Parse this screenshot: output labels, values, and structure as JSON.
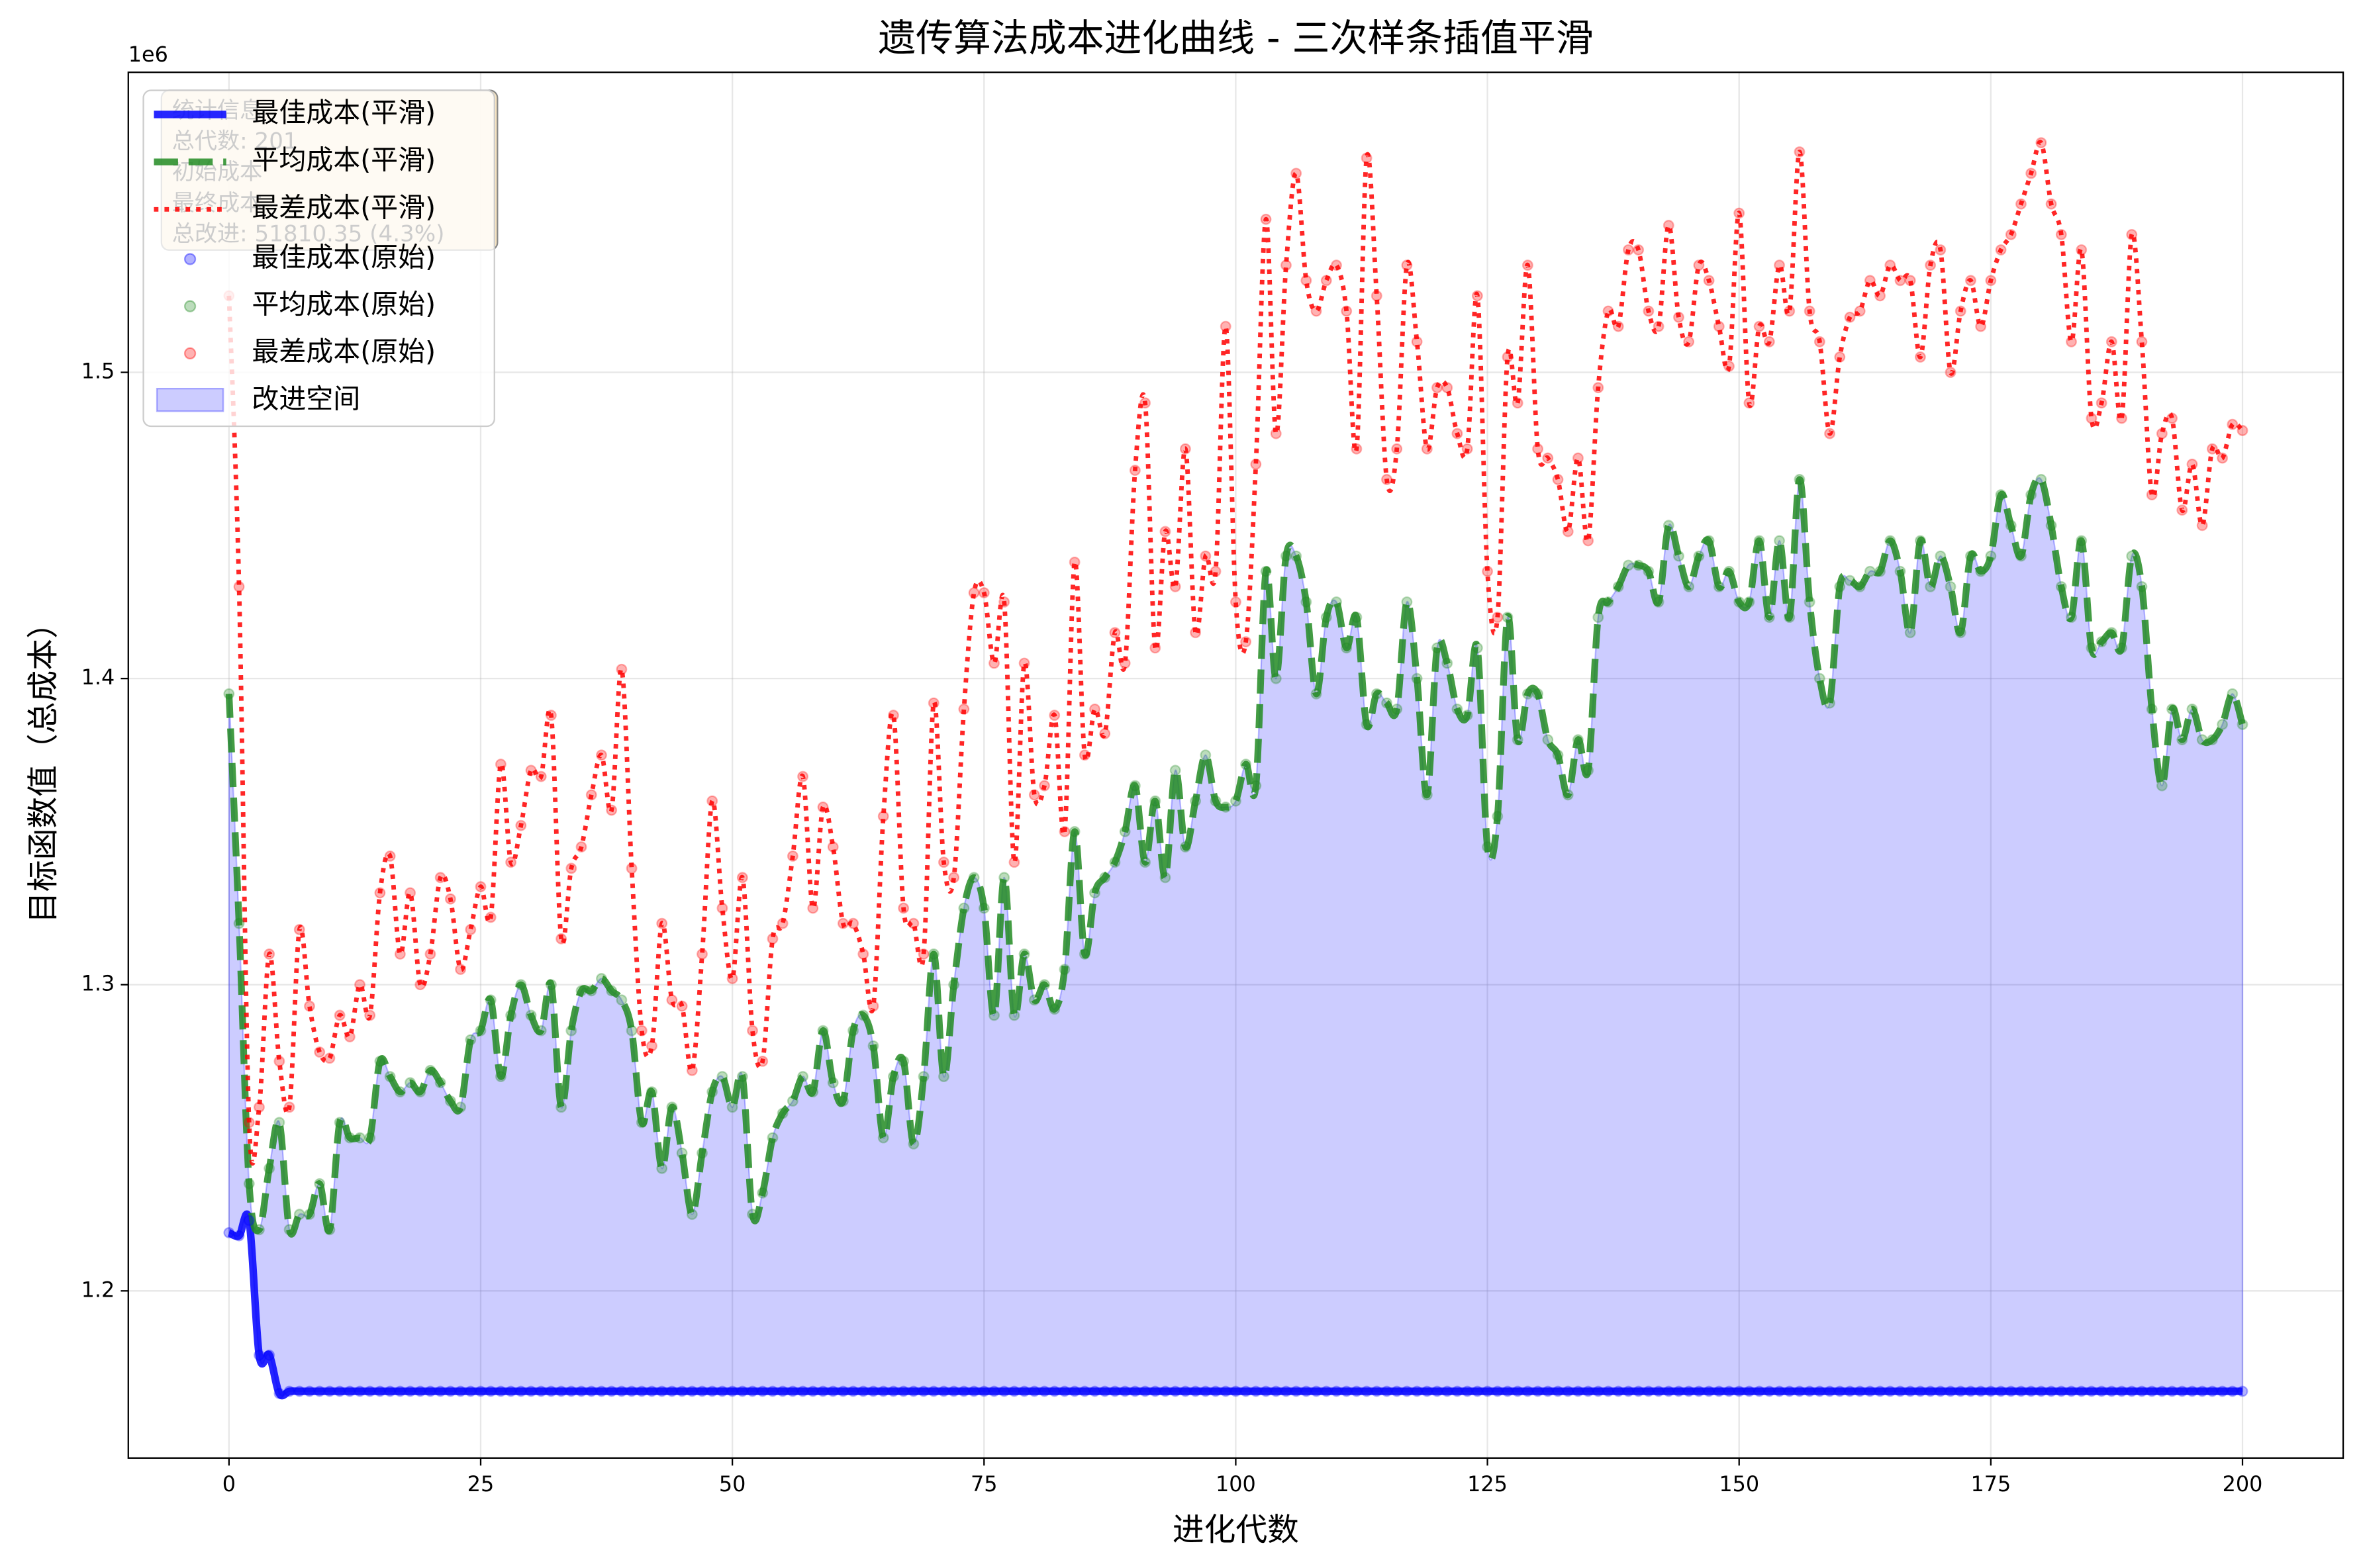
{
  "chart_data": {
    "type": "line",
    "title": "遗传算法成本进化曲线 - 三次样条插值平滑",
    "xlabel": "进化代数",
    "ylabel": "目标函数值（总成本）",
    "y_offset_label": "1e6",
    "xlim": [
      -10,
      210
    ],
    "ylim": [
      1145400,
      1598000
    ],
    "xticks": [
      0,
      25,
      50,
      75,
      100,
      125,
      150,
      175,
      200
    ],
    "yticks": [
      {
        "value": 1200000,
        "label": "1.2"
      },
      {
        "value": 1300000,
        "label": "1.3"
      },
      {
        "value": 1400000,
        "label": "1.4"
      },
      {
        "value": 1500000,
        "label": "1.5"
      }
    ],
    "grid": true,
    "legend": "upper left",
    "fill_label": "改进空间",
    "fill_color": "#0000ff",
    "stats": [
      "统计信息",
      "总代数: 201",
      "初始成本",
      "最终成本",
      "总改进: 51810.35 (4.3%)"
    ],
    "x": [
      0,
      1,
      2,
      3,
      4,
      5,
      6,
      7,
      8,
      9,
      10,
      11,
      12,
      13,
      14,
      15,
      16,
      17,
      18,
      19,
      20,
      21,
      22,
      23,
      24,
      25,
      26,
      27,
      28,
      29,
      30,
      31,
      32,
      33,
      34,
      35,
      36,
      37,
      38,
      39,
      40,
      41,
      42,
      43,
      44,
      45,
      46,
      47,
      48,
      49,
      50,
      51,
      52,
      53,
      54,
      55,
      56,
      57,
      58,
      59,
      60,
      61,
      62,
      63,
      64,
      65,
      66,
      67,
      68,
      69,
      70,
      71,
      72,
      73,
      74,
      75,
      76,
      77,
      78,
      79,
      80,
      81,
      82,
      83,
      84,
      85,
      86,
      87,
      88,
      89,
      90,
      91,
      92,
      93,
      94,
      95,
      96,
      97,
      98,
      99,
      100,
      101,
      102,
      103,
      104,
      105,
      106,
      107,
      108,
      109,
      110,
      111,
      112,
      113,
      114,
      115,
      116,
      117,
      118,
      119,
      120,
      121,
      122,
      123,
      124,
      125,
      126,
      127,
      128,
      129,
      130,
      131,
      132,
      133,
      134,
      135,
      136,
      137,
      138,
      139,
      140,
      141,
      142,
      143,
      144,
      145,
      146,
      147,
      148,
      149,
      150,
      151,
      152,
      153,
      154,
      155,
      156,
      157,
      158,
      159,
      160,
      161,
      162,
      163,
      164,
      165,
      166,
      167,
      168,
      169,
      170,
      171,
      172,
      173,
      174,
      175,
      176,
      177,
      178,
      179,
      180,
      181,
      182,
      183,
      184,
      185,
      186,
      187,
      188,
      189,
      190,
      191,
      192,
      193,
      194,
      195,
      196,
      197,
      198,
      199,
      200
    ],
    "series": [
      {
        "name": "最佳成本(平滑)",
        "raw_name": "最佳成本(原始)",
        "color": "#0000ff",
        "style": "solid",
        "values": [
          1219000,
          1218000,
          1223000,
          1179000,
          1179000,
          1166500,
          1167200,
          1167200,
          1167200,
          1167200,
          1167200,
          1167200,
          1167200,
          1167200,
          1167200,
          1167200,
          1167200,
          1167200,
          1167200,
          1167200,
          1167200,
          1167200,
          1167200,
          1167200,
          1167200,
          1167200,
          1167200,
          1167200,
          1167200,
          1167200,
          1167200,
          1167200,
          1167200,
          1167200,
          1167200,
          1167200,
          1167200,
          1167200,
          1167200,
          1167200,
          1167200,
          1167200,
          1167200,
          1167200,
          1167200,
          1167200,
          1167200,
          1167200,
          1167200,
          1167200,
          1167200,
          1167200,
          1167200,
          1167200,
          1167200,
          1167200,
          1167200,
          1167200,
          1167200,
          1167200,
          1167200,
          1167200,
          1167200,
          1167200,
          1167200,
          1167200,
          1167200,
          1167200,
          1167200,
          1167200,
          1167200,
          1167200,
          1167200,
          1167200,
          1167200,
          1167200,
          1167200,
          1167200,
          1167200,
          1167200,
          1167200,
          1167200,
          1167200,
          1167200,
          1167200,
          1167200,
          1167200,
          1167200,
          1167200,
          1167200,
          1167200,
          1167200,
          1167200,
          1167200,
          1167200,
          1167200,
          1167200,
          1167200,
          1167200,
          1167200,
          1167200,
          1167200,
          1167200,
          1167200,
          1167200,
          1167200,
          1167200,
          1167200,
          1167200,
          1167200,
          1167200,
          1167200,
          1167200,
          1167200,
          1167200,
          1167200,
          1167200,
          1167200,
          1167200,
          1167200,
          1167200,
          1167200,
          1167200,
          1167200,
          1167200,
          1167200,
          1167200,
          1167200,
          1167200,
          1167200,
          1167200,
          1167200,
          1167200,
          1167200,
          1167200,
          1167200,
          1167200,
          1167200,
          1167200,
          1167200,
          1167200,
          1167200,
          1167200,
          1167200,
          1167200,
          1167200,
          1167200,
          1167200,
          1167200,
          1167200,
          1167200,
          1167200,
          1167200,
          1167200,
          1167200,
          1167200,
          1167200,
          1167200,
          1167200,
          1167200,
          1167200,
          1167200,
          1167200,
          1167200,
          1167200,
          1167200,
          1167200,
          1167200,
          1167200,
          1167200,
          1167200,
          1167200,
          1167200,
          1167200,
          1167200,
          1167200,
          1167200,
          1167200,
          1167200,
          1167200,
          1167200,
          1167200,
          1167200,
          1167200,
          1167200,
          1167200,
          1167200,
          1167200,
          1167200,
          1167200,
          1167200,
          1167200,
          1167200,
          1167200,
          1167200,
          1167200,
          1167200,
          1167200,
          1167200,
          1167200,
          1167200
        ]
      },
      {
        "name": "平均成本(平滑)",
        "raw_name": "平均成本(原始)",
        "color": "#228b22",
        "style": "dashed",
        "values": [
          1395000,
          1320000,
          1235000,
          1220000,
          1240000,
          1255000,
          1220000,
          1225000,
          1225000,
          1235000,
          1220000,
          1255000,
          1250000,
          1250000,
          1250000,
          1275000,
          1270000,
          1265000,
          1268000,
          1265000,
          1272000,
          1268000,
          1262000,
          1260000,
          1282000,
          1285000,
          1295000,
          1270000,
          1290000,
          1300000,
          1290000,
          1285000,
          1300000,
          1260000,
          1285000,
          1298000,
          1298000,
          1302000,
          1298000,
          1295000,
          1285000,
          1255000,
          1265000,
          1240000,
          1260000,
          1245000,
          1225000,
          1245000,
          1265000,
          1270000,
          1260000,
          1270000,
          1225000,
          1232000,
          1250000,
          1258000,
          1262000,
          1270000,
          1265000,
          1285000,
          1268000,
          1262000,
          1285000,
          1290000,
          1280000,
          1250000,
          1270000,
          1275000,
          1248000,
          1270000,
          1310000,
          1270000,
          1300000,
          1325000,
          1335000,
          1325000,
          1290000,
          1335000,
          1290000,
          1310000,
          1295000,
          1300000,
          1292000,
          1305000,
          1350000,
          1310000,
          1330000,
          1335000,
          1340000,
          1350000,
          1365000,
          1340000,
          1360000,
          1335000,
          1370000,
          1345000,
          1360000,
          1375000,
          1360000,
          1358000,
          1360000,
          1372000,
          1365000,
          1435000,
          1400000,
          1440000,
          1440000,
          1425000,
          1395000,
          1420000,
          1425000,
          1410000,
          1420000,
          1385000,
          1395000,
          1392000,
          1390000,
          1425000,
          1400000,
          1362000,
          1410000,
          1405000,
          1390000,
          1388000,
          1410000,
          1345000,
          1355000,
          1420000,
          1380000,
          1395000,
          1395000,
          1380000,
          1375000,
          1362000,
          1380000,
          1370000,
          1420000,
          1425000,
          1430000,
          1437000,
          1437000,
          1435000,
          1425000,
          1450000,
          1440000,
          1430000,
          1440000,
          1445000,
          1430000,
          1435000,
          1425000,
          1425000,
          1445000,
          1420000,
          1445000,
          1420000,
          1465000,
          1425000,
          1400000,
          1392000,
          1430000,
          1432000,
          1430000,
          1435000,
          1435000,
          1445000,
          1435000,
          1415000,
          1445000,
          1430000,
          1440000,
          1430000,
          1415000,
          1440000,
          1435000,
          1440000,
          1460000,
          1450000,
          1440000,
          1460000,
          1465000,
          1450000,
          1430000,
          1420000,
          1445000,
          1410000,
          1412000,
          1415000,
          1410000,
          1440000,
          1430000,
          1390000,
          1365000,
          1390000,
          1380000,
          1390000,
          1380000,
          1380000,
          1385000,
          1395000,
          1385000
        ]
      },
      {
        "name": "最差成本(平滑)",
        "raw_name": "最差成本(原始)",
        "color": "#ff0000",
        "style": "dotted",
        "values": [
          1525000,
          1430000,
          1255000,
          1260000,
          1310000,
          1275000,
          1260000,
          1318000,
          1293000,
          1278000,
          1276000,
          1290000,
          1283000,
          1300000,
          1290000,
          1330000,
          1342000,
          1310000,
          1330000,
          1300000,
          1310000,
          1335000,
          1328000,
          1305000,
          1318000,
          1332000,
          1322000,
          1372000,
          1340000,
          1352000,
          1370000,
          1368000,
          1388000,
          1315000,
          1338000,
          1345000,
          1362000,
          1375000,
          1357000,
          1403000,
          1338000,
          1285000,
          1280000,
          1320000,
          1295000,
          1293000,
          1272000,
          1310000,
          1360000,
          1325000,
          1302000,
          1335000,
          1285000,
          1275000,
          1315000,
          1320000,
          1342000,
          1368000,
          1325000,
          1358000,
          1345000,
          1320000,
          1320000,
          1310000,
          1293000,
          1355000,
          1388000,
          1325000,
          1320000,
          1310000,
          1392000,
          1340000,
          1335000,
          1390000,
          1428000,
          1428000,
          1405000,
          1425000,
          1340000,
          1405000,
          1362000,
          1365000,
          1388000,
          1350000,
          1438000,
          1375000,
          1390000,
          1382000,
          1415000,
          1405000,
          1468000,
          1490000,
          1410000,
          1448000,
          1430000,
          1475000,
          1415000,
          1440000,
          1435000,
          1515000,
          1425000,
          1412000,
          1470000,
          1550000,
          1480000,
          1535000,
          1565000,
          1530000,
          1520000,
          1530000,
          1535000,
          1520000,
          1475000,
          1570000,
          1525000,
          1465000,
          1475000,
          1535000,
          1510000,
          1475000,
          1495000,
          1495000,
          1480000,
          1475000,
          1525000,
          1435000,
          1420000,
          1505000,
          1490000,
          1535000,
          1475000,
          1472000,
          1465000,
          1448000,
          1472000,
          1445000,
          1495000,
          1520000,
          1515000,
          1540000,
          1540000,
          1520000,
          1515000,
          1548000,
          1518000,
          1510000,
          1535000,
          1530000,
          1515000,
          1502000,
          1552000,
          1490000,
          1515000,
          1510000,
          1535000,
          1520000,
          1572000,
          1520000,
          1510000,
          1480000,
          1505000,
          1518000,
          1520000,
          1530000,
          1525000,
          1535000,
          1530000,
          1530000,
          1505000,
          1535000,
          1540000,
          1500000,
          1520000,
          1530000,
          1515000,
          1530000,
          1540000,
          1545000,
          1555000,
          1565000,
          1575000,
          1555000,
          1545000,
          1510000,
          1540000,
          1485000,
          1490000,
          1510000,
          1485000,
          1545000,
          1510000,
          1460000,
          1480000,
          1485000,
          1455000,
          1470000,
          1450000,
          1475000,
          1472000,
          1483000,
          1481000
        ]
      }
    ]
  }
}
